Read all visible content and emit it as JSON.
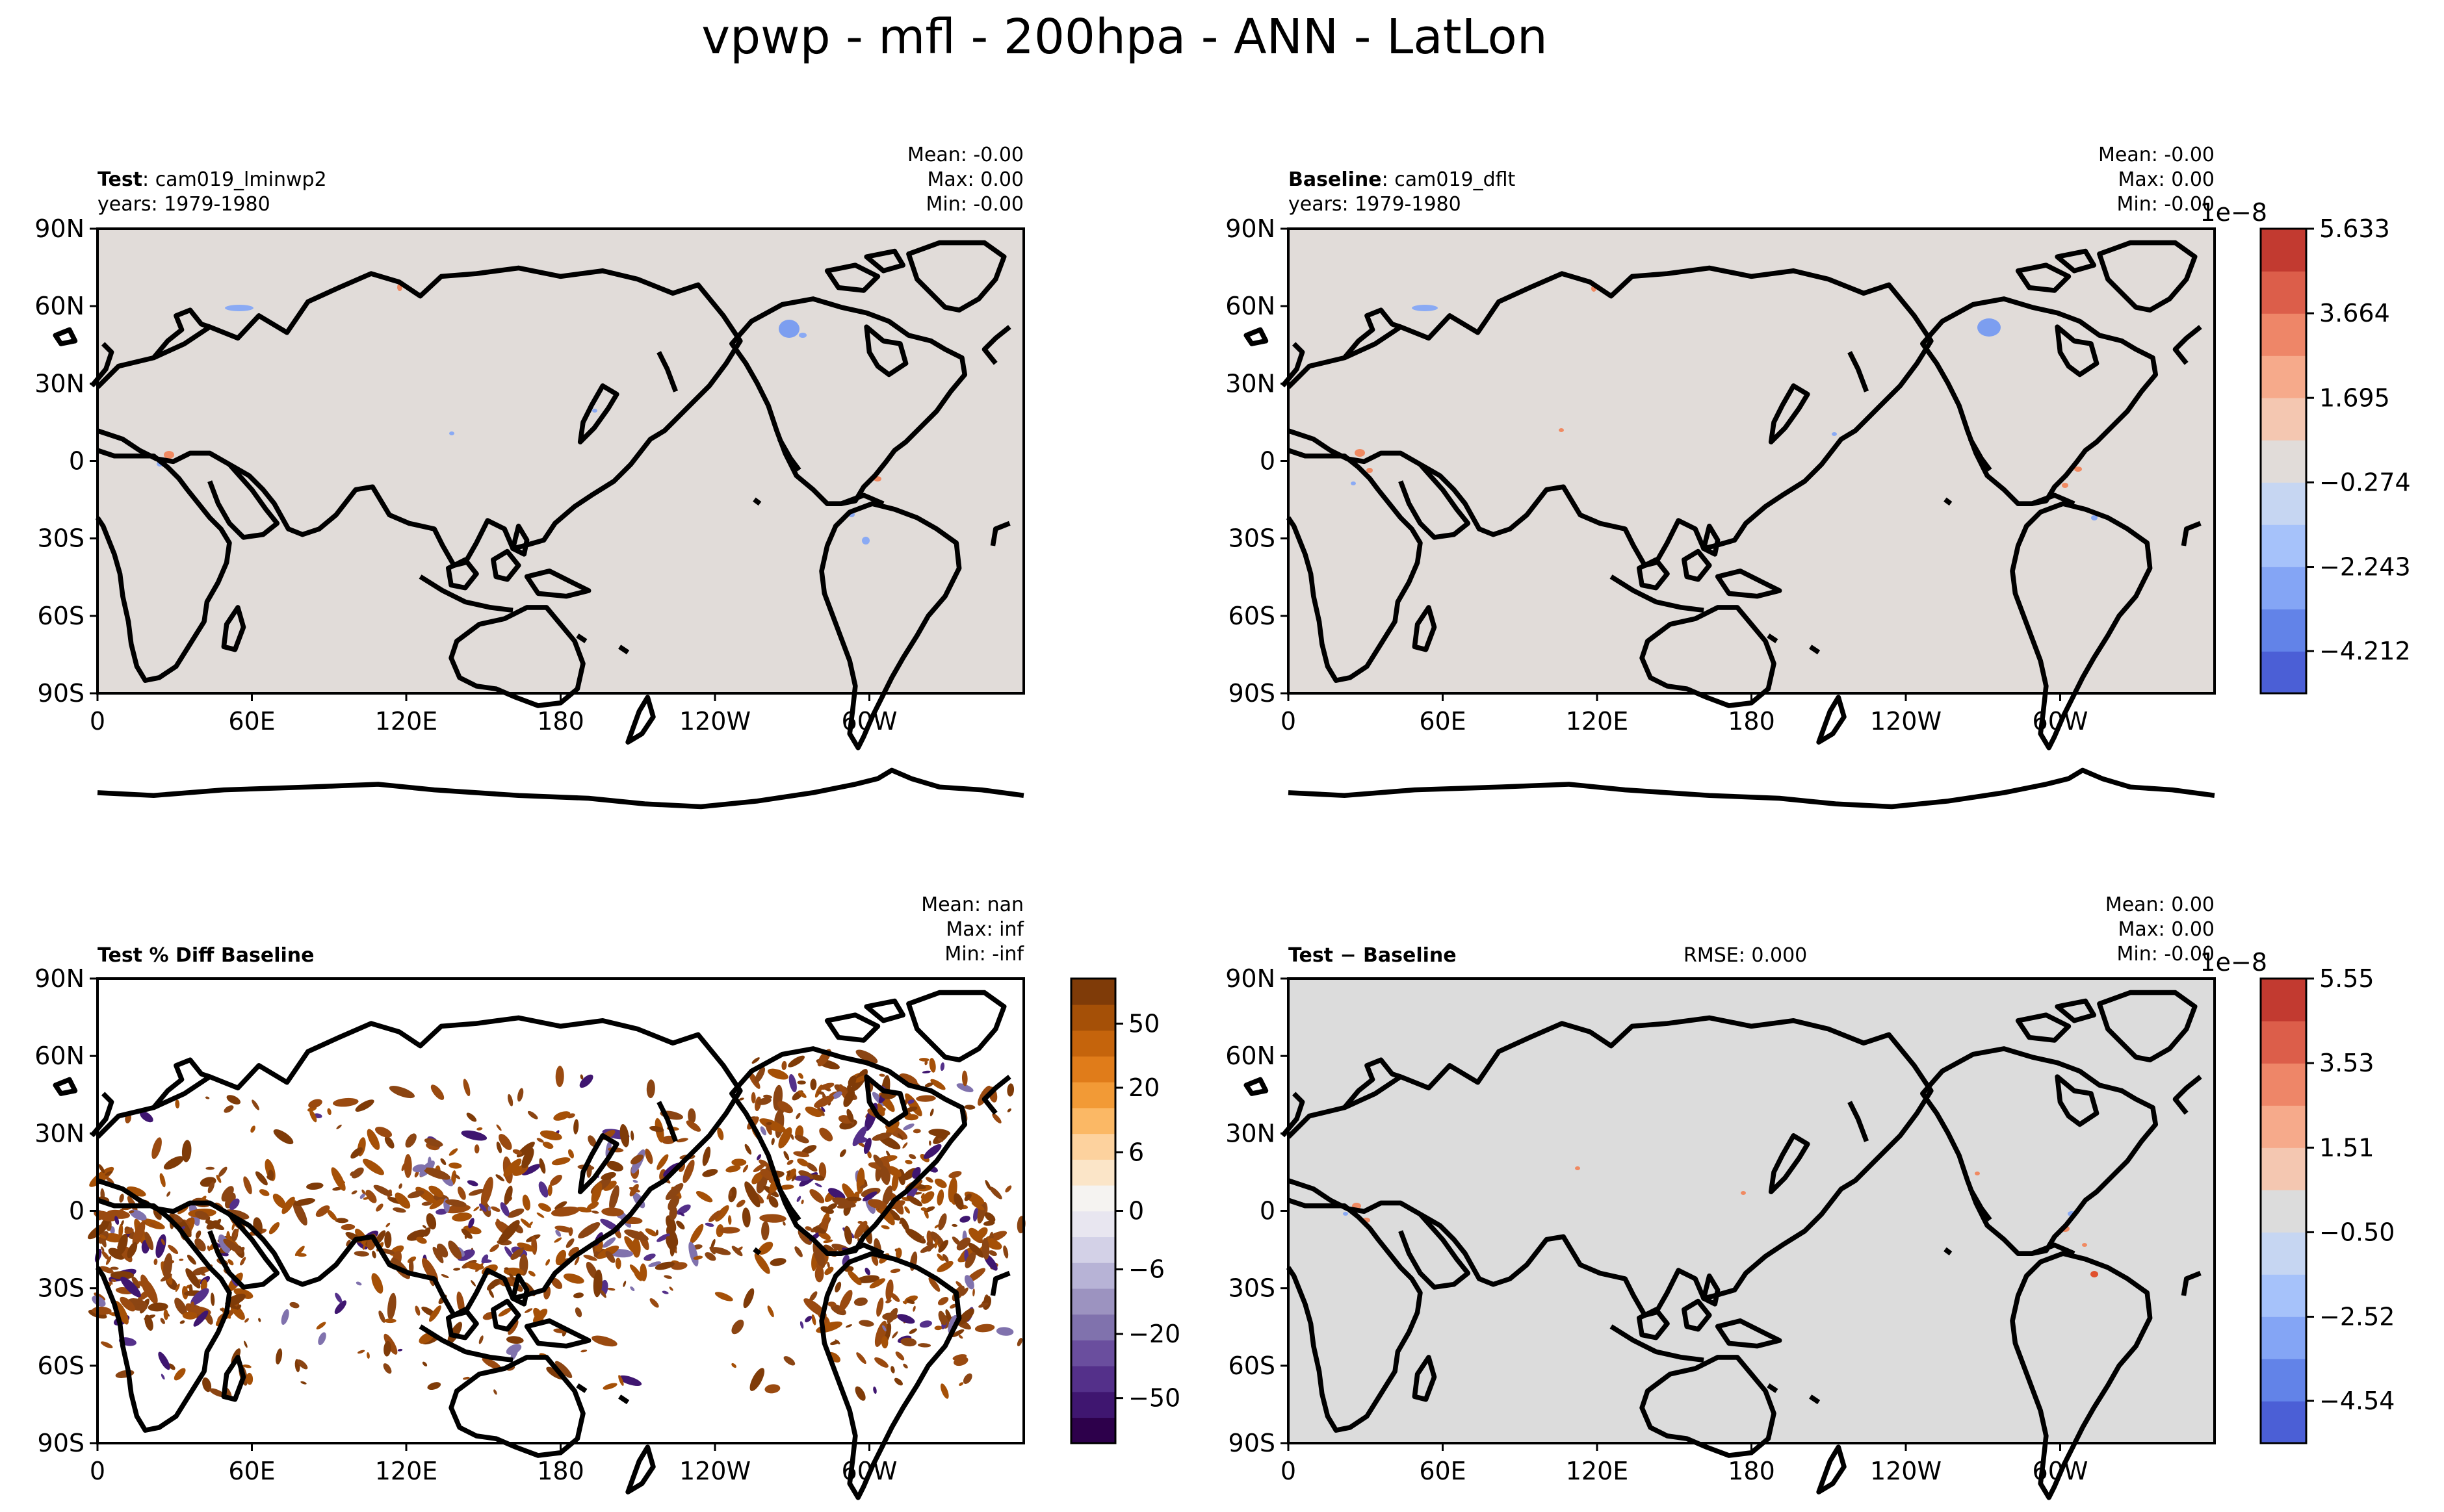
{
  "figure": {
    "title": "vpwp - mfl - 200hpa - ANN - LatLon"
  },
  "colors": {
    "test_base_bg": "#e1dcd9",
    "diff_bg": "#dcdcdc",
    "pct_bg": "#ffffff",
    "coast": "#000000",
    "warm": "#f08a62",
    "cool": "#8aaaf4",
    "brown": "#8b4513"
  },
  "chart_data": [
    {
      "type": "heatmap",
      "panel": "test",
      "title_label": "Test",
      "title_value": "cam019_lminwp2",
      "subtitle": "years: 1979-1980",
      "stats": {
        "mean": "Mean: -0.00",
        "max": "Max:  0.00",
        "min": "Min: -0.00"
      },
      "x_ticks": [
        "0",
        "60E",
        "120E",
        "180",
        "120W",
        "60W"
      ],
      "y_ticks": [
        "90N",
        "60N",
        "30N",
        "0",
        "30S",
        "60S",
        "90S"
      ],
      "xlim": [
        0,
        360
      ],
      "ylim": [
        -90,
        90
      ]
    },
    {
      "type": "heatmap",
      "panel": "baseline",
      "title_label": "Baseline",
      "title_value": "cam019_dflt",
      "subtitle": "years: 1979-1980",
      "stats": {
        "mean": "Mean: -0.00",
        "max": "Max:  0.00",
        "min": "Min: -0.00"
      },
      "x_ticks": [
        "0",
        "60E",
        "120E",
        "180",
        "120W",
        "60W"
      ],
      "y_ticks": [
        "90N",
        "60N",
        "30N",
        "0",
        "30S",
        "60S",
        "90S"
      ],
      "xlim": [
        0,
        360
      ],
      "ylim": [
        -90,
        90
      ],
      "colorbar": {
        "exponent": "1e−8",
        "ticks": [
          "5.633",
          "3.664",
          "1.695",
          "−0.274",
          "−2.243",
          "−4.212"
        ],
        "colors": [
          "#4b5fd6",
          "#6283e8",
          "#84a5f5",
          "#a6c2fa",
          "#c6d6f2",
          "#e1dcd9",
          "#f4c7b1",
          "#f6aa8b",
          "#ee8668",
          "#dc5e4a",
          "#c23a30"
        ]
      }
    },
    {
      "type": "heatmap",
      "panel": "percent_diff",
      "title_label": "Test % Diff Baseline",
      "stats": {
        "mean": "Mean:   nan",
        "max": "Max:   inf",
        "min": "Min:  -inf"
      },
      "x_ticks": [
        "0",
        "60E",
        "120E",
        "180",
        "120W",
        "60W"
      ],
      "y_ticks": [
        "90N",
        "60N",
        "30N",
        "0",
        "30S",
        "60S",
        "90S"
      ],
      "xlim": [
        0,
        360
      ],
      "ylim": [
        -90,
        90
      ],
      "colorbar": {
        "ticks": [
          "50",
          "20",
          "6",
          "0",
          "−6",
          "−20",
          "−50"
        ],
        "colors": [
          "#2d004b",
          "#3f1670",
          "#54308a",
          "#6a4e9e",
          "#8072ad",
          "#9c93c0",
          "#b7b3d6",
          "#d3d1e7",
          "#e8e6f0",
          "#f5f3f1",
          "#fbe5c8",
          "#fdd29e",
          "#fbb865",
          "#f29a36",
          "#e07c1a",
          "#c5640c",
          "#a55007",
          "#7f3b08"
        ]
      }
    },
    {
      "type": "heatmap",
      "panel": "difference",
      "title_label": "Test − Baseline",
      "rmse": "RMSE: 0.000",
      "stats": {
        "mean": "Mean:  0.00",
        "max": "Max:  0.00",
        "min": "Min: -0.00"
      },
      "x_ticks": [
        "0",
        "60E",
        "120E",
        "180",
        "120W",
        "60W"
      ],
      "y_ticks": [
        "90N",
        "60N",
        "30N",
        "0",
        "30S",
        "60S",
        "90S"
      ],
      "xlim": [
        0,
        360
      ],
      "ylim": [
        -90,
        90
      ],
      "colorbar": {
        "exponent": "1e−8",
        "ticks": [
          "5.55",
          "3.53",
          "1.51",
          "−0.50",
          "−2.52",
          "−4.54"
        ],
        "colors": [
          "#4b5fd6",
          "#6283e8",
          "#84a5f5",
          "#a6c2fa",
          "#c6d6f2",
          "#dcdcdc",
          "#f4c7b1",
          "#f6aa8b",
          "#ee8668",
          "#dc5e4a",
          "#c23a30"
        ]
      }
    }
  ]
}
